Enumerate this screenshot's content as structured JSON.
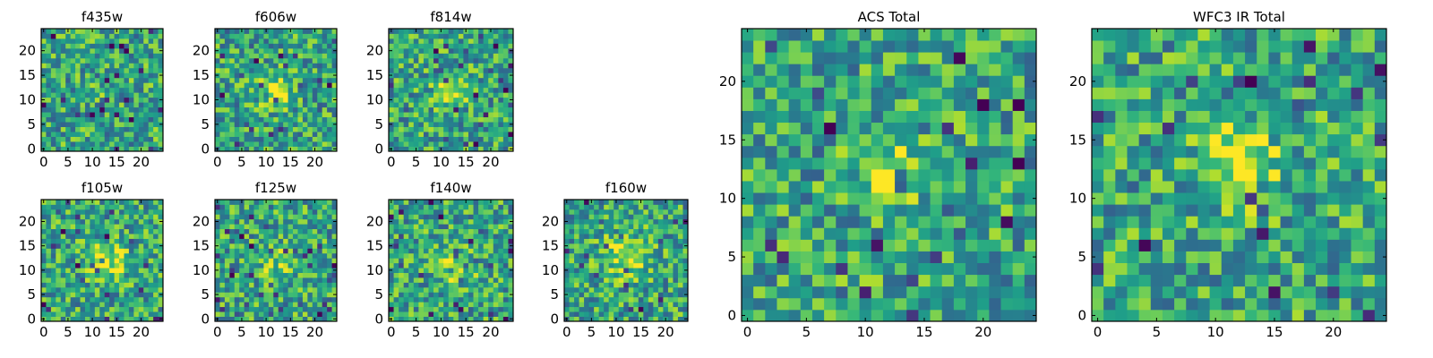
{
  "chart_data": [
    {
      "type": "heatmap",
      "title": "f435w",
      "xticks": [
        "0",
        "5",
        "10",
        "15",
        "20"
      ],
      "yticks": [
        "0",
        "5",
        "10",
        "15",
        "20"
      ],
      "xlim": [
        -0.5,
        24.5
      ],
      "ylim": [
        -0.5,
        24.5
      ],
      "colormap": "viridis",
      "seed": 11,
      "blob": {
        "cx": 12,
        "cy": 12,
        "sigma": 2.4,
        "amp": 0.05
      }
    },
    {
      "type": "heatmap",
      "title": "f606w",
      "xticks": [
        "0",
        "5",
        "10",
        "15",
        "20"
      ],
      "yticks": [
        "0",
        "5",
        "10",
        "15",
        "20"
      ],
      "xlim": [
        -0.5,
        24.5
      ],
      "ylim": [
        -0.5,
        24.5
      ],
      "colormap": "viridis",
      "seed": 23,
      "blob": {
        "cx": 12,
        "cy": 12,
        "sigma": 2.4,
        "amp": 0.3
      }
    },
    {
      "type": "heatmap",
      "title": "f814w",
      "xticks": [
        "0",
        "5",
        "10",
        "15",
        "20"
      ],
      "yticks": [
        "0",
        "5",
        "10",
        "15",
        "20"
      ],
      "xlim": [
        -0.5,
        24.5
      ],
      "ylim": [
        -0.5,
        24.5
      ],
      "colormap": "viridis",
      "seed": 37,
      "blob": {
        "cx": 12,
        "cy": 12,
        "sigma": 2.2,
        "amp": 0.35
      }
    },
    {
      "type": "heatmap",
      "title": "f105w",
      "xticks": [
        "0",
        "5",
        "10",
        "15",
        "20"
      ],
      "yticks": [
        "0",
        "5",
        "10",
        "15",
        "20"
      ],
      "xlim": [
        -0.5,
        24.5
      ],
      "ylim": [
        -0.5,
        24.5
      ],
      "colormap": "viridis",
      "seed": 41,
      "blob": {
        "cx": 13,
        "cy": 12,
        "sigma": 2.6,
        "amp": 0.35
      }
    },
    {
      "type": "heatmap",
      "title": "f125w",
      "xticks": [
        "0",
        "5",
        "10",
        "15",
        "20"
      ],
      "yticks": [
        "0",
        "5",
        "10",
        "15",
        "20"
      ],
      "xlim": [
        -0.5,
        24.5
      ],
      "ylim": [
        -0.5,
        24.5
      ],
      "colormap": "viridis",
      "seed": 53,
      "blob": {
        "cx": 12,
        "cy": 12,
        "sigma": 2.6,
        "amp": 0.2
      }
    },
    {
      "type": "heatmap",
      "title": "f140w",
      "xticks": [
        "0",
        "5",
        "10",
        "15",
        "20"
      ],
      "yticks": [
        "0",
        "5",
        "10",
        "15",
        "20"
      ],
      "xlim": [
        -0.5,
        24.5
      ],
      "ylim": [
        -0.5,
        24.5
      ],
      "colormap": "viridis",
      "seed": 67,
      "blob": {
        "cx": 13,
        "cy": 11,
        "sigma": 2.6,
        "amp": 0.3
      }
    },
    {
      "type": "heatmap",
      "title": "f160w",
      "xticks": [
        "0",
        "5",
        "10",
        "15",
        "20"
      ],
      "yticks": [
        "0",
        "5",
        "10",
        "15",
        "20"
      ],
      "xlim": [
        -0.5,
        24.5
      ],
      "ylim": [
        -0.5,
        24.5
      ],
      "colormap": "viridis",
      "seed": 79,
      "blob": {
        "cx": 12,
        "cy": 13,
        "sigma": 3.0,
        "amp": 0.35
      }
    },
    {
      "type": "heatmap",
      "title": "ACS Total",
      "xticks": [
        "0",
        "5",
        "10",
        "15",
        "20"
      ],
      "yticks": [
        "0",
        "5",
        "10",
        "15",
        "20"
      ],
      "xlim": [
        -0.5,
        24.5
      ],
      "ylim": [
        -0.5,
        24.5
      ],
      "colormap": "viridis",
      "seed": 97,
      "blob": {
        "cx": 12,
        "cy": 12,
        "sigma": 1.9,
        "amp": 0.4
      }
    },
    {
      "type": "heatmap",
      "title": "WFC3 IR Total",
      "xticks": [
        "0",
        "5",
        "10",
        "15",
        "20"
      ],
      "yticks": [
        "0",
        "5",
        "10",
        "15",
        "20"
      ],
      "xlim": [
        -0.5,
        24.5
      ],
      "ylim": [
        -0.5,
        24.5
      ],
      "colormap": "viridis",
      "seed": 113,
      "blob": {
        "cx": 12,
        "cy": 13,
        "sigma": 2.3,
        "amp": 0.45
      }
    }
  ]
}
